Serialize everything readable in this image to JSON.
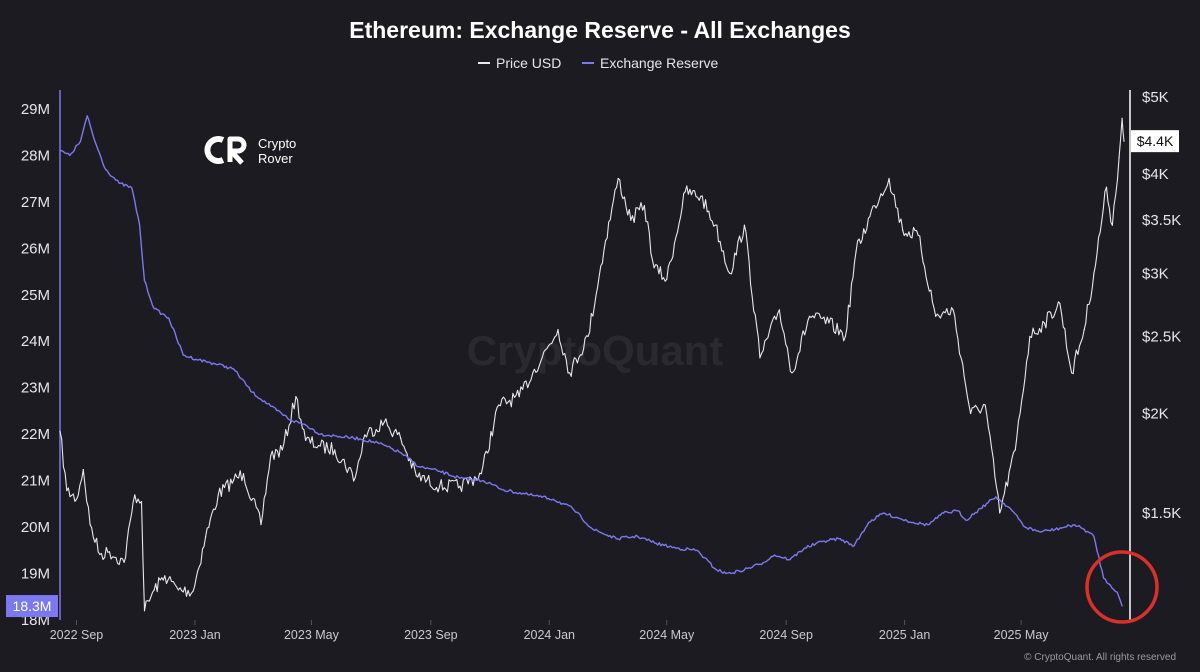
{
  "chart_data": {
    "type": "line",
    "title": "Ethereum: Exchange Reserve - All Exchanges",
    "legend": {
      "placement": "top-center",
      "items": [
        {
          "name": "Price USD",
          "color": "#e8e8ec"
        },
        {
          "name": "Exchange Reserve",
          "color": "#7b78f0"
        }
      ]
    },
    "x_ticks": [
      "2022 Sep",
      "2023 Jan",
      "2023 May",
      "2023 Sep",
      "2024 Jan",
      "2024 May",
      "2024 Sep",
      "2025 Jan",
      "2025 May"
    ],
    "x_range": [
      "2022-08-15",
      "2025-08-15"
    ],
    "left_axis": {
      "ylim": [
        18,
        29.3
      ],
      "ticks": [
        "29M",
        "28M",
        "27M",
        "26M",
        "25M",
        "24M",
        "23M",
        "22M",
        "21M",
        "20M",
        "19M",
        "18M"
      ],
      "tick_values": [
        29,
        28,
        27,
        26,
        25,
        24,
        23,
        22,
        21,
        20,
        19,
        18
      ],
      "current_label": "18.3M",
      "current_value": 18.3
    },
    "right_axis": {
      "scale": "log",
      "ylim": [
        1100,
        5000
      ],
      "ticks": [
        "$5K",
        "$4K",
        "$3.5K",
        "$3K",
        "$2.5K",
        "$2K",
        "$1.5K"
      ],
      "tick_values": [
        5000,
        4000,
        3500,
        3000,
        2500,
        2000,
        1500
      ],
      "current_label": "$4.4K",
      "current_value": 4400
    },
    "grid": false,
    "series": [
      {
        "name": "Exchange Reserve",
        "axis": "left",
        "color": "#7b78f0",
        "points": [
          [
            "2022-08-15",
            28.1
          ],
          [
            "2022-08-25",
            28.0
          ],
          [
            "2022-09-05",
            28.3
          ],
          [
            "2022-09-12",
            28.85
          ],
          [
            "2022-09-20",
            28.3
          ],
          [
            "2022-10-01",
            27.7
          ],
          [
            "2022-10-15",
            27.4
          ],
          [
            "2022-10-28",
            27.3
          ],
          [
            "2022-11-05",
            26.5
          ],
          [
            "2022-11-10",
            25.3
          ],
          [
            "2022-11-20",
            24.7
          ],
          [
            "2022-12-05",
            24.5
          ],
          [
            "2022-12-20",
            23.7
          ],
          [
            "2023-01-05",
            23.6
          ],
          [
            "2023-01-25",
            23.5
          ],
          [
            "2023-02-10",
            23.4
          ],
          [
            "2023-03-01",
            22.9
          ],
          [
            "2023-03-20",
            22.6
          ],
          [
            "2023-04-10",
            22.3
          ],
          [
            "2023-04-25",
            22.2
          ],
          [
            "2023-05-10",
            22.0
          ],
          [
            "2023-05-30",
            21.95
          ],
          [
            "2023-06-20",
            21.9
          ],
          [
            "2023-07-10",
            21.8
          ],
          [
            "2023-08-01",
            21.6
          ],
          [
            "2023-08-20",
            21.3
          ],
          [
            "2023-09-10",
            21.2
          ],
          [
            "2023-10-01",
            21.05
          ],
          [
            "2023-10-25",
            21.0
          ],
          [
            "2023-11-15",
            20.8
          ],
          [
            "2023-12-10",
            20.7
          ],
          [
            "2024-01-05",
            20.6
          ],
          [
            "2024-01-25",
            20.4
          ],
          [
            "2024-02-15",
            19.95
          ],
          [
            "2024-03-10",
            19.75
          ],
          [
            "2024-04-01",
            19.8
          ],
          [
            "2024-04-20",
            19.65
          ],
          [
            "2024-05-10",
            19.55
          ],
          [
            "2024-06-01",
            19.5
          ],
          [
            "2024-06-20",
            19.1
          ],
          [
            "2024-07-01",
            19.0
          ],
          [
            "2024-07-15",
            19.05
          ],
          [
            "2024-08-05",
            19.2
          ],
          [
            "2024-08-20",
            19.4
          ],
          [
            "2024-09-05",
            19.3
          ],
          [
            "2024-09-20",
            19.55
          ],
          [
            "2024-10-10",
            19.7
          ],
          [
            "2024-10-25",
            19.75
          ],
          [
            "2024-11-10",
            19.6
          ],
          [
            "2024-11-25",
            20.1
          ],
          [
            "2024-12-10",
            20.3
          ],
          [
            "2024-12-25",
            20.2
          ],
          [
            "2025-01-10",
            20.1
          ],
          [
            "2025-01-25",
            20.05
          ],
          [
            "2025-02-10",
            20.3
          ],
          [
            "2025-02-25",
            20.35
          ],
          [
            "2025-03-05",
            20.15
          ],
          [
            "2025-03-20",
            20.4
          ],
          [
            "2025-04-05",
            20.65
          ],
          [
            "2025-04-20",
            20.4
          ],
          [
            "2025-05-05",
            20.0
          ],
          [
            "2025-05-20",
            19.9
          ],
          [
            "2025-06-05",
            19.95
          ],
          [
            "2025-06-25",
            20.05
          ],
          [
            "2025-07-05",
            19.95
          ],
          [
            "2025-07-15",
            19.8
          ],
          [
            "2025-07-25",
            18.9
          ],
          [
            "2025-08-01",
            18.75
          ],
          [
            "2025-08-08",
            18.6
          ],
          [
            "2025-08-13",
            18.3
          ]
        ]
      },
      {
        "name": "Price USD",
        "axis": "right",
        "color": "#e8e8ec",
        "points": [
          [
            "2022-08-15",
            1900
          ],
          [
            "2022-08-22",
            1600
          ],
          [
            "2022-09-01",
            1560
          ],
          [
            "2022-09-08",
            1700
          ],
          [
            "2022-09-15",
            1450
          ],
          [
            "2022-09-25",
            1330
          ],
          [
            "2022-10-05",
            1340
          ],
          [
            "2022-10-20",
            1300
          ],
          [
            "2022-10-31",
            1580
          ],
          [
            "2022-11-07",
            1550
          ],
          [
            "2022-11-10",
            1130
          ],
          [
            "2022-11-20",
            1200
          ],
          [
            "2022-12-01",
            1250
          ],
          [
            "2022-12-15",
            1200
          ],
          [
            "2022-12-30",
            1195
          ],
          [
            "2023-01-12",
            1400
          ],
          [
            "2023-01-25",
            1580
          ],
          [
            "2023-02-10",
            1650
          ],
          [
            "2023-02-20",
            1680
          ],
          [
            "2023-03-10",
            1450
          ],
          [
            "2023-03-20",
            1770
          ],
          [
            "2023-04-01",
            1800
          ],
          [
            "2023-04-15",
            2100
          ],
          [
            "2023-04-25",
            1850
          ],
          [
            "2023-05-10",
            1820
          ],
          [
            "2023-05-25",
            1800
          ],
          [
            "2023-06-15",
            1660
          ],
          [
            "2023-06-25",
            1880
          ],
          [
            "2023-07-15",
            1950
          ],
          [
            "2023-08-01",
            1860
          ],
          [
            "2023-08-17",
            1670
          ],
          [
            "2023-09-10",
            1620
          ],
          [
            "2023-10-01",
            1620
          ],
          [
            "2023-10-23",
            1680
          ],
          [
            "2023-11-10",
            2050
          ],
          [
            "2023-12-01",
            2100
          ],
          [
            "2023-12-15",
            2250
          ],
          [
            "2024-01-10",
            2550
          ],
          [
            "2024-01-22",
            2250
          ],
          [
            "2024-02-10",
            2500
          ],
          [
            "2024-02-28",
            3300
          ],
          [
            "2024-03-12",
            3950
          ],
          [
            "2024-03-25",
            3500
          ],
          [
            "2024-04-08",
            3650
          ],
          [
            "2024-04-18",
            3050
          ],
          [
            "2024-05-01",
            2950
          ],
          [
            "2024-05-20",
            3800
          ],
          [
            "2024-06-05",
            3750
          ],
          [
            "2024-06-20",
            3450
          ],
          [
            "2024-07-05",
            3000
          ],
          [
            "2024-07-20",
            3450
          ],
          [
            "2024-08-05",
            2350
          ],
          [
            "2024-08-25",
            2700
          ],
          [
            "2024-09-07",
            2250
          ],
          [
            "2024-09-25",
            2650
          ],
          [
            "2024-10-15",
            2600
          ],
          [
            "2024-11-01",
            2500
          ],
          [
            "2024-11-12",
            3200
          ],
          [
            "2024-12-01",
            3650
          ],
          [
            "2024-12-16",
            3950
          ],
          [
            "2024-12-30",
            3400
          ],
          [
            "2025-01-15",
            3350
          ],
          [
            "2025-02-02",
            2650
          ],
          [
            "2025-02-20",
            2700
          ],
          [
            "2025-03-10",
            2000
          ],
          [
            "2025-03-25",
            2050
          ],
          [
            "2025-04-09",
            1500
          ],
          [
            "2025-04-25",
            1800
          ],
          [
            "2025-05-10",
            2500
          ],
          [
            "2025-05-25",
            2600
          ],
          [
            "2025-06-10",
            2750
          ],
          [
            "2025-06-22",
            2250
          ],
          [
            "2025-07-05",
            2550
          ],
          [
            "2025-07-15",
            3000
          ],
          [
            "2025-07-28",
            3850
          ],
          [
            "2025-08-03",
            3450
          ],
          [
            "2025-08-10",
            4200
          ],
          [
            "2025-08-13",
            4700
          ],
          [
            "2025-08-15",
            4400
          ]
        ]
      }
    ]
  },
  "brand": {
    "line1": "Crypto",
    "line2": "Rover",
    "mark": "CR"
  },
  "watermark": "CryptoQuant",
  "copyright": "© CryptoQuant. All rights reserved",
  "colors": {
    "background": "#1c1b21",
    "reserve": "#7b78f0",
    "price": "#e8e8ec",
    "highlight": "#d9302c"
  }
}
